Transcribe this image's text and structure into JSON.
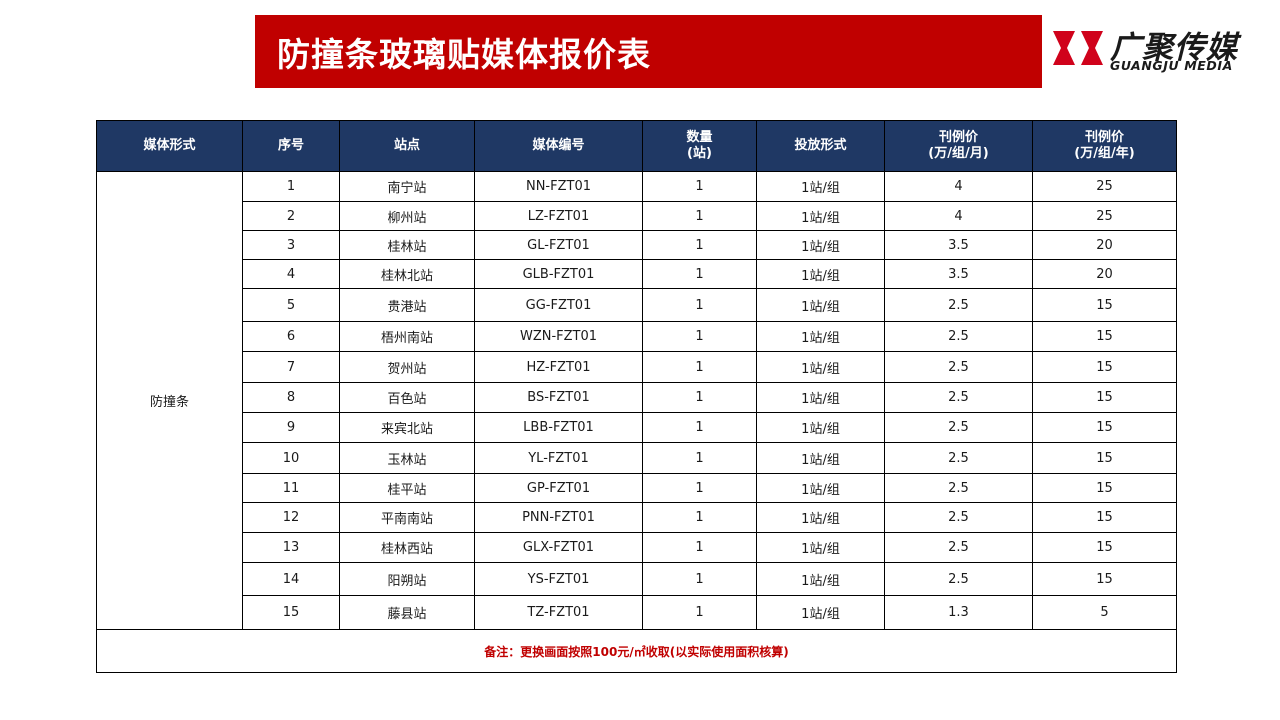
{
  "header": {
    "title": "防撞条玻璃贴媒体报价表"
  },
  "logo": {
    "cn": "广聚传媒",
    "en": "GUANGJU MEDIA",
    "mark_color": "#d0021b"
  },
  "colors": {
    "title_bg": "#c00000",
    "header_bg": "#1f3864",
    "note_text": "#c00000"
  },
  "table": {
    "headers": [
      [
        "媒体形式"
      ],
      [
        "序号"
      ],
      [
        "站点"
      ],
      [
        "媒体编号"
      ],
      [
        "数量",
        "(站)"
      ],
      [
        "投放形式"
      ],
      [
        "刊例价",
        "(万/组/月)"
      ],
      [
        "刊例价",
        "(万/组/年)"
      ]
    ],
    "category": "防撞条",
    "rows": [
      [
        "1",
        "南宁站",
        "NN-FZT01",
        "1",
        "1站/组",
        "4",
        "25"
      ],
      [
        "2",
        "柳州站",
        "LZ-FZT01",
        "1",
        "1站/组",
        "4",
        "25"
      ],
      [
        "3",
        "桂林站",
        "GL-FZT01",
        "1",
        "1站/组",
        "3.5",
        "20"
      ],
      [
        "4",
        "桂林北站",
        "GLB-FZT01",
        "1",
        "1站/组",
        "3.5",
        "20"
      ],
      [
        "5",
        "贵港站",
        "GG-FZT01",
        "1",
        "1站/组",
        "2.5",
        "15"
      ],
      [
        "6",
        "梧州南站",
        "WZN-FZT01",
        "1",
        "1站/组",
        "2.5",
        "15"
      ],
      [
        "7",
        "贺州站",
        "HZ-FZT01",
        "1",
        "1站/组",
        "2.5",
        "15"
      ],
      [
        "8",
        "百色站",
        "BS-FZT01",
        "1",
        "1站/组",
        "2.5",
        "15"
      ],
      [
        "9",
        "来宾北站",
        "LBB-FZT01",
        "1",
        "1站/组",
        "2.5",
        "15"
      ],
      [
        "10",
        "玉林站",
        "YL-FZT01",
        "1",
        "1站/组",
        "2.5",
        "15"
      ],
      [
        "11",
        "桂平站",
        "GP-FZT01",
        "1",
        "1站/组",
        "2.5",
        "15"
      ],
      [
        "12",
        "平南南站",
        "PNN-FZT01",
        "1",
        "1站/组",
        "2.5",
        "15"
      ],
      [
        "13",
        "桂林西站",
        "GLX-FZT01",
        "1",
        "1站/组",
        "2.5",
        "15"
      ],
      [
        "14",
        "阳朔站",
        "YS-FZT01",
        "1",
        "1站/组",
        "2.5",
        "15"
      ],
      [
        "15",
        "藤县站",
        "TZ-FZT01",
        "1",
        "1站/组",
        "1.3",
        "5"
      ]
    ],
    "note": "备注：更换画面按照100元/㎡收取(以实际使用面积核算)"
  }
}
